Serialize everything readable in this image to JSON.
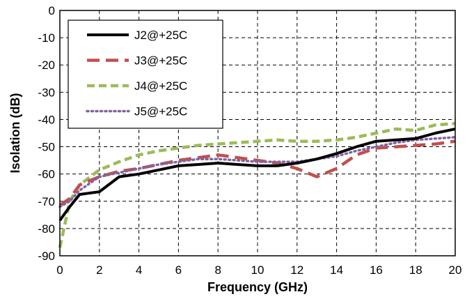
{
  "chart_data": {
    "type": "line",
    "xlabel": "Frequency (GHz)",
    "ylabel": "Isolation (dB)",
    "xlim": [
      0,
      20
    ],
    "ylim": [
      -90,
      0
    ],
    "xticks": [
      0,
      2,
      4,
      6,
      8,
      10,
      12,
      14,
      16,
      18,
      20
    ],
    "yticks": [
      0,
      -10,
      -20,
      -30,
      -40,
      -50,
      -60,
      -70,
      -80,
      -90
    ],
    "grid": true,
    "legend_position": "top-left",
    "series": [
      {
        "name": "J2@+25C",
        "color": "#000000",
        "style": "solid",
        "x": [
          0,
          0.5,
          1,
          2,
          3,
          4,
          5,
          6,
          7,
          8,
          9,
          10,
          11,
          12,
          13,
          14,
          15,
          16,
          17,
          18,
          19,
          20
        ],
        "y": [
          -77,
          -72,
          -67.5,
          -66.5,
          -61,
          -60,
          -58.5,
          -57,
          -56.5,
          -56,
          -56.5,
          -57,
          -57,
          -56,
          -54.5,
          -52.5,
          -50,
          -48,
          -47.5,
          -47,
          -45,
          -43.5
        ]
      },
      {
        "name": "J3@+25C",
        "color": "#c0504d",
        "style": "long-dash",
        "x": [
          0,
          0.5,
          1,
          2,
          3,
          4,
          5,
          6,
          7,
          8,
          9,
          10,
          11,
          12,
          12.5,
          13,
          14,
          15,
          16,
          17,
          18,
          19,
          20
        ],
        "y": [
          -71.5,
          -69,
          -64,
          -61,
          -59,
          -58,
          -56.5,
          -55,
          -54,
          -53,
          -54,
          -55,
          -56,
          -58,
          -59.5,
          -61,
          -58,
          -53,
          -50.5,
          -50,
          -49.5,
          -49,
          -48
        ]
      },
      {
        "name": "J4@+25C",
        "color": "#9bbb59",
        "style": "dash",
        "x": [
          0,
          0.5,
          1,
          2,
          3,
          4,
          5,
          6,
          7,
          8,
          9,
          10,
          11,
          12,
          13,
          14,
          15,
          16,
          17,
          18,
          19,
          20
        ],
        "y": [
          -87,
          -70,
          -64,
          -58.5,
          -55.5,
          -53,
          -51.5,
          -50.5,
          -49.5,
          -49,
          -48.5,
          -48,
          -47.5,
          -48,
          -48,
          -47.5,
          -46.5,
          -45,
          -43.5,
          -44,
          -42,
          -41.5
        ]
      },
      {
        "name": "J5@+25C",
        "color": "#8064a2",
        "style": "dot",
        "x": [
          0,
          0.5,
          1,
          2,
          3,
          4,
          5,
          6,
          7,
          8,
          9,
          10,
          11,
          12,
          13,
          14,
          15,
          16,
          17,
          18,
          19,
          20
        ],
        "y": [
          -72,
          -70,
          -66,
          -61,
          -59.5,
          -58,
          -56.5,
          -55.5,
          -54.5,
          -54.5,
          -55,
          -55.5,
          -55.5,
          -55.5,
          -54.5,
          -53.5,
          -51.5,
          -50,
          -48.5,
          -47.5,
          -47,
          -46.5
        ]
      }
    ]
  }
}
